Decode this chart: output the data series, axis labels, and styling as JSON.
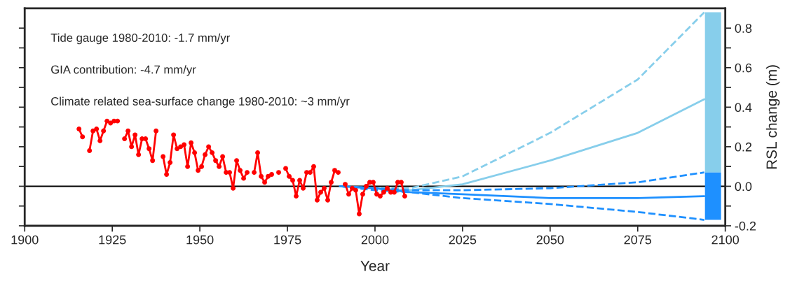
{
  "chart_data": {
    "type": "line",
    "xlabel": "Year",
    "ylabel": "RSL change (m)",
    "annotations": [
      "Tide gauge 1980-2010: -1.7 mm/yr",
      "GIA contribution: -4.7 mm/yr",
      "Climate related sea-surface change 1980-2010: ~3 mm/yr"
    ],
    "xlim": [
      1900,
      2100
    ],
    "xticks": [
      1900,
      1925,
      1950,
      1975,
      2000,
      2025,
      2050,
      2075,
      2100
    ],
    "ylim": [
      -0.2,
      0.9
    ],
    "yticks": [
      {
        "value": -0.2,
        "label": "-0.2"
      },
      {
        "value": -0.1,
        "label": null
      },
      {
        "value": 0,
        "label": "0.0"
      },
      {
        "value": 0.1,
        "label": null
      },
      {
        "value": 0.2,
        "label": "0.2"
      },
      {
        "value": 0.3,
        "label": null
      },
      {
        "value": 0.4,
        "label": "0.4"
      },
      {
        "value": 0.5,
        "label": null
      },
      {
        "value": 0.6,
        "label": "0.6"
      },
      {
        "value": 0.7,
        "label": null
      },
      {
        "value": 0.8,
        "label": "0.8"
      }
    ],
    "ref_lines": [
      {
        "axis": "y",
        "value": 0,
        "color": "#000000",
        "line_style": "solid"
      }
    ],
    "series": [
      {
        "type": "bar",
        "color": "#87ceeb",
        "x": [
          2096.5
        ],
        "base": [
          0.07
        ],
        "values": [
          0.81
        ]
      },
      {
        "type": "bar",
        "color": "#1e90ff",
        "x": [
          2096.5
        ],
        "base": [
          -0.17
        ],
        "values": [
          0.24
        ]
      },
      {
        "color": "#87ceeb",
        "line_style": "dashed",
        "marker": "none",
        "x": [
          1990,
          2000,
          2010,
          2025,
          2050,
          2075,
          2094
        ],
        "values": [
          0,
          -0.01,
          -0.01,
          0.05,
          0.27,
          0.54,
          0.88
        ]
      },
      {
        "color": "#87ceeb",
        "line_style": "solid",
        "marker": "none",
        "x": [
          1990,
          2000,
          2010,
          2025,
          2050,
          2075,
          2094
        ],
        "values": [
          0,
          -0.01,
          -0.02,
          0.01,
          0.13,
          0.27,
          0.44
        ]
      },
      {
        "color": "#1e90ff",
        "line_style": "dashed",
        "marker": "none",
        "x": [
          1990,
          2000,
          2010,
          2025,
          2050,
          2075,
          2094
        ],
        "values": [
          0,
          -0.01,
          -0.02,
          -0.02,
          -0.01,
          0.02,
          0.07
        ]
      },
      {
        "color": "#1e90ff",
        "line_style": "solid",
        "marker": "none",
        "x": [
          1990,
          2000,
          2010,
          2025,
          2050,
          2075,
          2094
        ],
        "values": [
          0,
          -0.01,
          -0.03,
          -0.04,
          -0.06,
          -0.06,
          -0.05
        ]
      },
      {
        "color": "#1e90ff",
        "line_style": "dashed",
        "marker": "none",
        "x": [
          1990,
          2000,
          2010,
          2025,
          2050,
          2075,
          2094
        ],
        "values": [
          0,
          -0.02,
          -0.03,
          -0.06,
          -0.09,
          -0.13,
          -0.17
        ]
      },
      {
        "color": "#ff0000",
        "line_style": "solid",
        "marker": "circle",
        "x": [
          1915.5,
          1916.5,
          1917.5,
          1918.5,
          1919.5,
          1920.5,
          1921.5,
          1922.5,
          1923.5,
          1924.5,
          1925.5,
          1926.5,
          1927.5,
          1928.5,
          1929.5,
          1930.5,
          1931.5,
          1932.5,
          1933.5,
          1934.5,
          1935.5,
          1936.5,
          1937.5,
          1938.5,
          1939.5,
          1940.5,
          1941.5,
          1942.5,
          1943.5,
          1944.5,
          1945.5,
          1946.5,
          1947.5,
          1948.5,
          1949.5,
          1950.5,
          1951.5,
          1952.5,
          1953.5,
          1954.5,
          1955.5,
          1956.5,
          1957.5,
          1958.5,
          1959.5,
          1960.5,
          1961.5,
          1962.5,
          1963.5,
          1964.5,
          1965.5,
          1966.5,
          1967.5,
          1968.5,
          1969.5,
          1970.5,
          1971.5,
          1972.5,
          1973.5,
          1974.5,
          1975.5,
          1976.5,
          1977.5,
          1978.5,
          1979.5,
          1980.5,
          1981.5,
          1982.5,
          1983.5,
          1984.5,
          1985.5,
          1986.5,
          1987.5,
          1988.5,
          1989.5,
          1990.5,
          1991.5,
          1992.5,
          1993.5,
          1994.5,
          1995.5,
          1996.5,
          1997.5,
          1998.5,
          1999.5,
          2000.5,
          2001.5,
          2002.5,
          2003.5,
          2004.5,
          2005.5,
          2006.5,
          2007.5,
          2008.5
        ],
        "values": [
          0.29,
          0.25,
          null,
          0.18,
          0.28,
          0.29,
          0.23,
          0.28,
          0.33,
          0.32,
          0.33,
          0.33,
          null,
          0.24,
          0.28,
          0.2,
          0.26,
          0.16,
          0.24,
          0.24,
          0.19,
          0.13,
          0.28,
          null,
          0.15,
          0.06,
          0.12,
          0.26,
          0.19,
          0.2,
          0.21,
          0.1,
          0.22,
          0.17,
          0.08,
          0.1,
          0.16,
          0.2,
          0.17,
          0.13,
          0.1,
          0.15,
          0.07,
          0.07,
          -0.01,
          0.13,
          0.08,
          0.04,
          0.07,
          null,
          0.07,
          0.17,
          0.05,
          0.02,
          0.05,
          0.06,
          null,
          0.07,
          null,
          0.09,
          0.05,
          0.03,
          -0.05,
          0.03,
          -0.01,
          0.07,
          0.07,
          0.1,
          -0.07,
          -0.03,
          -0.01,
          -0.07,
          0.02,
          0.08,
          0.07,
          null,
          0.01,
          -0.04,
          -0.01,
          -0.02,
          -0.14,
          -0.04,
          0.0,
          0.02,
          0.02,
          -0.04,
          -0.05,
          -0.03,
          -0.01,
          -0.03,
          -0.03,
          0.02,
          0.02,
          -0.05
        ]
      }
    ]
  }
}
